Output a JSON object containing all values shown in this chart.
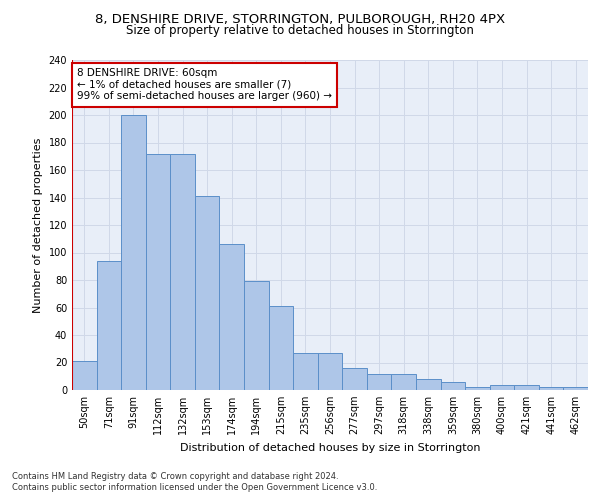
{
  "title1": "8, DENSHIRE DRIVE, STORRINGTON, PULBOROUGH, RH20 4PX",
  "title2": "Size of property relative to detached houses in Storrington",
  "xlabel": "Distribution of detached houses by size in Storrington",
  "ylabel": "Number of detached properties",
  "categories": [
    "50sqm",
    "71sqm",
    "91sqm",
    "112sqm",
    "132sqm",
    "153sqm",
    "174sqm",
    "194sqm",
    "215sqm",
    "235sqm",
    "256sqm",
    "277sqm",
    "297sqm",
    "318sqm",
    "338sqm",
    "359sqm",
    "380sqm",
    "400sqm",
    "421sqm",
    "441sqm",
    "462sqm"
  ],
  "values": [
    21,
    94,
    200,
    172,
    172,
    141,
    106,
    79,
    61,
    27,
    27,
    16,
    12,
    12,
    8,
    6,
    2,
    4,
    4,
    2,
    2
  ],
  "bar_color": "#aec6e8",
  "bar_edge_color": "#5b8fc9",
  "highlight_color": "#cc0000",
  "annotation_text": "8 DENSHIRE DRIVE: 60sqm\n← 1% of detached houses are smaller (7)\n99% of semi-detached houses are larger (960) →",
  "annotation_box_color": "#ffffff",
  "annotation_box_edge_color": "#cc0000",
  "ylim": [
    0,
    240
  ],
  "yticks": [
    0,
    20,
    40,
    60,
    80,
    100,
    120,
    140,
    160,
    180,
    200,
    220,
    240
  ],
  "grid_color": "#d0d8e8",
  "bg_color": "#e8eef8",
  "footer1": "Contains HM Land Registry data © Crown copyright and database right 2024.",
  "footer2": "Contains public sector information licensed under the Open Government Licence v3.0.",
  "title1_fontsize": 9.5,
  "title2_fontsize": 8.5,
  "xlabel_fontsize": 8,
  "ylabel_fontsize": 8,
  "tick_fontsize": 7,
  "annotation_fontsize": 7.5,
  "footer_fontsize": 6
}
